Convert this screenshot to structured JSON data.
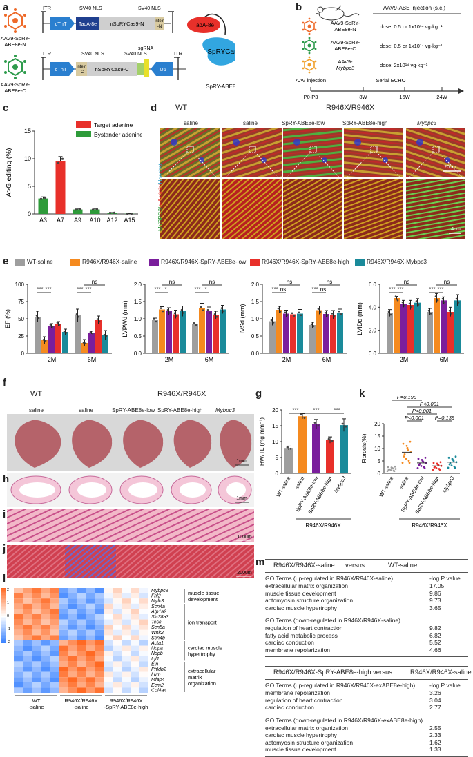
{
  "panels": {
    "a": {
      "label": "a",
      "constructN": {
        "name_line1": "AAV9-SpRY-",
        "name_line2": "ABE8e-N",
        "itr": "ITR",
        "ctnt": "cTnT",
        "sv40_1": "SV40 NLS",
        "tada": "TadA-8e",
        "nspry": "nSpRYCas9-N",
        "sv40_2": "SV40 NLS",
        "intein": "Intein -N"
      },
      "constructC": {
        "name_line1": "AAV9-SpRY-",
        "name_line2": "ABE8e-C",
        "itr": "ITR",
        "ctnt": "cTnT",
        "intein": "Intein -C",
        "sv40_1": "SV40 NLS",
        "nspry": "nSpRYCas9-C",
        "sv40_2": "SV40 NLS",
        "sgrna": "sgRNA",
        "u6": "U6"
      },
      "protein": {
        "tada": "TadA-8e",
        "spry": "SpRYCas9",
        "caption": "SpRY-ABE8e"
      }
    },
    "b": {
      "label": "b",
      "injection_title": "AAV9-ABE injection (s.c.)",
      "groups": [
        {
          "name_line1": "AAV9-SpRY-",
          "name_line2": "ABE8e-N",
          "dose": "dose: 0.5 or 1x10¹⁴ vg·kg⁻¹",
          "color": "#ee6a2a"
        },
        {
          "name_line1": "AAV9-SpRY-",
          "name_line2": "ABE8e-C",
          "dose": "dose: 0.5 or 1x10¹⁴ vg·kg⁻¹",
          "color": "#2e9b4c"
        },
        {
          "name_line1": "AAV9-",
          "name_line2": "Mybpc3",
          "dose": "dose: 2x10¹⁴ vg·kg⁻¹",
          "color": "#f0a02a"
        }
      ],
      "timeline_top": [
        "AAV injection",
        "Serial ECHO"
      ],
      "timeline_ticks": [
        "P0-P3",
        "8W",
        "16W",
        "24W"
      ]
    },
    "c": {
      "label": "c",
      "ylabel": "A>G editing (%)",
      "legend": [
        {
          "name": "Target adenine",
          "color": "#e8302a"
        },
        {
          "name": "Bystander adenine",
          "color": "#2e9b3a"
        }
      ],
      "categories": [
        "A3",
        "A7",
        "A9",
        "A10",
        "A12",
        "A15"
      ],
      "values": [
        2.8,
        9.5,
        0.8,
        0.8,
        0.2,
        0.05
      ],
      "errors": [
        0.3,
        0.9,
        0.1,
        0.1,
        0.05,
        0.02
      ],
      "colors": [
        "#2e9b3a",
        "#e8302a",
        "#2e9b3a",
        "#2e9b3a",
        "#2e9b3a",
        "#2e9b3a"
      ],
      "yticks": [
        "0",
        "5",
        "10",
        "15"
      ],
      "ylim": [
        0,
        15
      ]
    },
    "d": {
      "label": "d",
      "wt": "WT",
      "mut": "R946X/R946X",
      "columns": [
        "saline",
        "saline",
        "SpRY-ABE8e-low",
        "SpRY-ABE8e-high",
        "Mybpc3"
      ],
      "ylabel_parts": [
        "MYBPC3/",
        "α-Actinin/",
        "Hoechst"
      ],
      "scale_top": "20um",
      "scale_bottom": "4um"
    },
    "e": {
      "label": "e",
      "legend": [
        {
          "name": "WT-saline",
          "color": "#9e9e9e"
        },
        {
          "name": "R946X/R946X-saline",
          "color": "#f58a1f"
        },
        {
          "name": "R946X/R946X-SpRY-ABE8e-low",
          "color": "#7a1e9c"
        },
        {
          "name": "R946X/R946X-SpRY-ABE8e-high",
          "color": "#e8302a"
        },
        {
          "name": "R946X/R946X-Mybpc3",
          "color": "#1a8a9a"
        }
      ],
      "charts": [
        {
          "ylabel": "EF (%)",
          "yticks": [
            "0",
            "25",
            "50",
            "75",
            "100"
          ],
          "ymax": 100,
          "groups": [
            "2M",
            "6M"
          ],
          "values": [
            [
              53,
              19,
              40,
              43,
              31
            ],
            [
              55,
              15,
              30,
              48,
              26
            ]
          ],
          "errors": [
            [
              8,
              5,
              3,
              3,
              4
            ],
            [
              9,
              5,
              2,
              6,
              7
            ]
          ],
          "sig": [
            [
              "***",
              "***"
            ],
            [
              "***",
              "***"
            ]
          ],
          "ns": [
            "",
            "ns"
          ]
        },
        {
          "ylabel": "LVPWd (mm)",
          "yticks": [
            "0.0",
            "0.5",
            "1.0",
            "1.5",
            "2.0"
          ],
          "ymax": 2.0,
          "groups": [
            "2M",
            "6M"
          ],
          "values": [
            [
              0.96,
              1.27,
              1.22,
              1.13,
              1.22
            ],
            [
              0.85,
              1.3,
              1.22,
              1.1,
              1.27
            ]
          ],
          "errors": [
            [
              0.06,
              0.08,
              0.1,
              0.12,
              0.15
            ],
            [
              0.06,
              0.15,
              0.12,
              0.12,
              0.12
            ]
          ],
          "sig": [
            [
              "***",
              "*"
            ],
            [
              "***",
              "*"
            ]
          ],
          "ns": [
            "ns",
            "ns"
          ]
        },
        {
          "ylabel": "IVSd (mm)",
          "yticks": [
            "0.0",
            "0.5",
            "1.0",
            "1.5",
            "2.0"
          ],
          "ymax": 2.0,
          "groups": [
            "2M",
            "6M"
          ],
          "values": [
            [
              0.93,
              1.26,
              1.15,
              1.13,
              1.15
            ],
            [
              0.82,
              1.25,
              1.14,
              1.12,
              1.18
            ]
          ],
          "errors": [
            [
              0.12,
              0.1,
              0.1,
              0.1,
              0.12
            ],
            [
              0.08,
              0.12,
              0.1,
              0.12,
              0.1
            ]
          ],
          "sig": [
            [
              "***",
              "ns"
            ],
            [
              "***",
              "ns"
            ]
          ],
          "ns": [
            "ns",
            "ns"
          ]
        },
        {
          "ylabel": "LVIDd (mm)",
          "yticks": [
            "0.0",
            "2.0",
            "4.0",
            "6.0"
          ],
          "ymax": 6.0,
          "groups": [
            "2M",
            "6M"
          ],
          "values": [
            [
              3.5,
              4.8,
              4.3,
              4.2,
              4.4
            ],
            [
              3.6,
              4.8,
              4.6,
              3.6,
              4.6
            ]
          ],
          "errors": [
            [
              0.3,
              0.15,
              0.3,
              0.4,
              0.35
            ],
            [
              0.3,
              0.4,
              0.3,
              0.4,
              0.5
            ]
          ],
          "sig": [
            [
              "***",
              "***"
            ],
            [
              "***",
              "***"
            ]
          ],
          "ns": [
            "ns",
            "ns"
          ]
        }
      ]
    },
    "f": {
      "label": "f",
      "wt": "WT",
      "mut": "R946X/R946X",
      "columns": [
        "saline",
        "saline",
        "SpRY-ABE8e-low",
        "SpRY-ABE8e-high",
        "Mybpc3"
      ],
      "scale": "1mm"
    },
    "g": {
      "label": "g",
      "ylabel": "HW/TL (mg·mm⁻¹)",
      "yticks": [
        "0",
        "5",
        "10",
        "15",
        "20"
      ],
      "ymax": 20,
      "categories": [
        "WT-saline",
        "saline",
        "SpRY-ABE8e-low",
        "SpRY-ABE8e-high",
        "Mybpc3"
      ],
      "values": [
        8,
        18,
        15.5,
        10.5,
        15.2
      ],
      "errors": [
        0.6,
        0.8,
        1.5,
        1.0,
        2.0
      ],
      "sig": [
        "***",
        "***",
        "***"
      ],
      "group_label": "R946X/R946X"
    },
    "h": {
      "label": "h",
      "scale": "1mm"
    },
    "i": {
      "label": "i",
      "scale": "100um"
    },
    "j": {
      "label": "j",
      "scale": "200um"
    },
    "k": {
      "label": "k",
      "ylabel": "Fibrosis(%)",
      "yticks": [
        "0",
        "5",
        "10",
        "15",
        "20"
      ],
      "ymax": 20,
      "categories": [
        "WT-saline",
        "saline",
        "SpRY-ABE8e-low",
        "SpRY-ABE8e-high",
        "Mybpc3"
      ],
      "means": [
        1.8,
        8.5,
        4.2,
        3.0,
        4.5
      ],
      "colors": [
        "#9e9e9e",
        "#f58a1f",
        "#7a1e9c",
        "#e8302a",
        "#1a8a9a"
      ],
      "pvals": [
        "P=0.198",
        "P<0.001",
        "P<0.001",
        "P<0.001",
        "P=0.139"
      ],
      "group_label": "R946X/R946X"
    },
    "l": {
      "label": "l",
      "scale_ticks": [
        "2",
        "1",
        "0",
        "-1",
        "-2"
      ],
      "genes": [
        "Mybpc3",
        "Fhl2",
        "Mylk3",
        "Scn4a",
        "Atp1a2",
        "Slc38a3",
        "Tesc",
        "Scn5a",
        "Wnk2",
        "Scn4b",
        "Acta1",
        "Nppa",
        "Nppb",
        "Igf1",
        "Eln",
        "Phldb2",
        "Lum",
        "Mfap4",
        "Ecm2",
        "Col4a4"
      ],
      "categories": [
        "muscle tissue development",
        "ion transport",
        "cardiac muscle hypertrophy",
        "extracellular matrix organization"
      ],
      "xgroups": [
        [
          "WT",
          "-saline"
        ],
        [
          "R946X/R946X",
          "-saline"
        ],
        [
          "R946X/R946X",
          "-SpRY-ABE8e-high"
        ]
      ]
    },
    "m": {
      "label": "m",
      "t1_left": "R946X/R946X-saline",
      "t1_vs": "versus",
      "t1_right": "WT-saline",
      "t1_up_header": "GO Terms (up-regulated in R946X/R946X-saline)",
      "t1_up_col": "-log P value",
      "t1_up": [
        [
          "extracellular matrix organization",
          "17.05"
        ],
        [
          "muscle tissue development",
          "9.86"
        ],
        [
          "actomyosin structure organization",
          "9.73"
        ],
        [
          "cardiac muscle hypertrophy",
          "3.65"
        ]
      ],
      "t1_down_header": "GO Terms (down-regulated in R946X/R946X-saline)",
      "t1_down": [
        [
          "regulation of heart contraction",
          "9.82"
        ],
        [
          "fatty acid metabolic process",
          "6.82"
        ],
        [
          "cardiac conduction",
          "5.52"
        ],
        [
          "membrane repolarization",
          "4.66"
        ]
      ],
      "t2_left": "R946X/R946X-SpRY-ABE8e-high",
      "t2_vs": "versus",
      "t2_right": "R946X/R946X-saline",
      "t2_up_header": "GO Terms (up-regulated in R946X/R946X-exABE8e-high)",
      "t2_up_col": "-log P value",
      "t2_up": [
        [
          "membrane repolarization",
          "3.26"
        ],
        [
          "regulation of heart contraction",
          "3.04"
        ],
        [
          "cardiac conduction",
          "2.77"
        ]
      ],
      "t2_down_header": "GO Terms (down-regulated in R946X/R946X-exABE8e-high)",
      "t2_down": [
        [
          "extracellular matrix organization",
          "2.55"
        ],
        [
          "cardiac muscle hypertrophy",
          "2.33"
        ],
        [
          "actomyosin structure organization",
          "1.62"
        ],
        [
          "muscle tissue development",
          "1.33"
        ]
      ]
    }
  }
}
